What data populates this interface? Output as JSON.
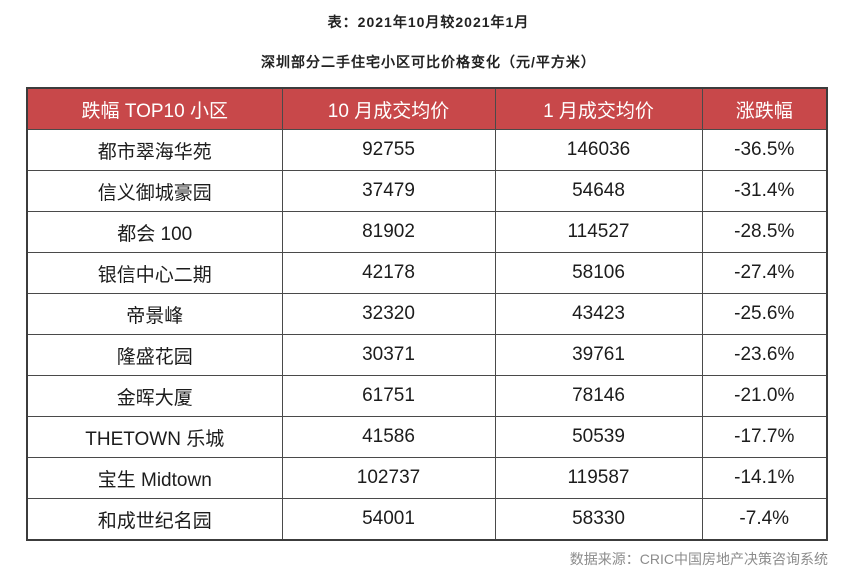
{
  "title_line1": "表：2021年10月较2021年1月",
  "title_line2": "深圳部分二手住宅小区可比价格变化（元/平方米）",
  "source": "数据来源：CRIC中国房地产决策咨询系统",
  "colors": {
    "header_bg": "#c8484a",
    "header_text": "#ffffff",
    "border": "#3c3c3c"
  },
  "chart_data": {
    "type": "table",
    "columns": [
      "跌幅 TOP10 小区",
      "10 月成交均价",
      "1 月成交均价",
      "涨跌幅"
    ],
    "rows": [
      [
        "都市翠海华苑",
        "92755",
        "146036",
        "-36.5%"
      ],
      [
        "信义御城豪园",
        "37479",
        "54648",
        "-31.4%"
      ],
      [
        "都会 100",
        "81902",
        "114527",
        "-28.5%"
      ],
      [
        "银信中心二期",
        "42178",
        "58106",
        "-27.4%"
      ],
      [
        "帝景峰",
        "32320",
        "43423",
        "-25.6%"
      ],
      [
        "隆盛花园",
        "30371",
        "39761",
        "-23.6%"
      ],
      [
        "金晖大厦",
        "61751",
        "78146",
        "-21.0%"
      ],
      [
        "THETOWN 乐城",
        "41586",
        "50539",
        "-17.7%"
      ],
      [
        "宝生 Midtown",
        "102737",
        "119587",
        "-14.1%"
      ],
      [
        "和成世纪名园",
        "54001",
        "58330",
        "-7.4%"
      ]
    ]
  }
}
